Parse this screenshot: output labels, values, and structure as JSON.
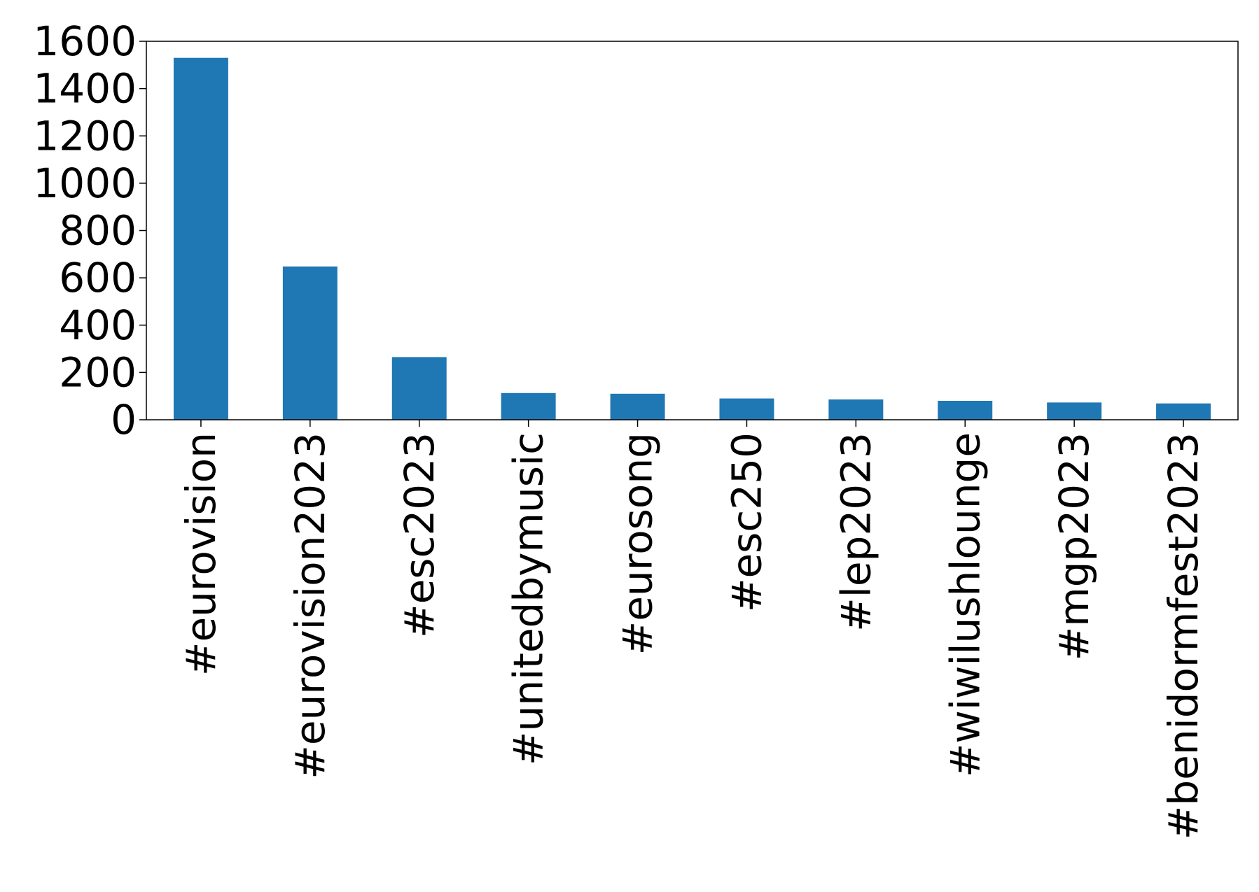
{
  "chart_data": {
    "type": "bar",
    "title": "",
    "xlabel": "",
    "ylabel": "",
    "categories": [
      "#eurovision",
      "#eurovision2023",
      "#esc2023",
      "#unitedbymusic",
      "#eurosong",
      "#esc250",
      "#lep2023",
      "#wiwilushlounge",
      "#mgp2023",
      "#benidormfest2023"
    ],
    "values": [
      1530,
      648,
      265,
      113,
      110,
      90,
      86,
      80,
      73,
      69
    ],
    "ylim": [
      0,
      1600
    ],
    "yticks": [
      0,
      200,
      400,
      600,
      800,
      1000,
      1200,
      1400,
      1600
    ],
    "grid": false,
    "legend": "none",
    "colors": {
      "bar": "#1f77b4",
      "axis": "#000000",
      "background": "#ffffff"
    }
  }
}
